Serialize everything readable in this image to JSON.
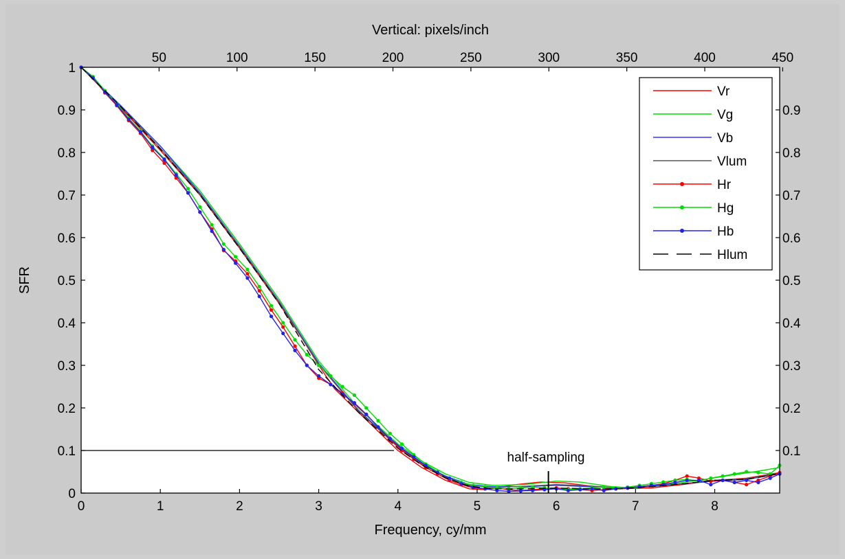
{
  "chart_data": {
    "type": "line",
    "xlabel": "Frequency, cy/mm",
    "ylabel": "SFR",
    "top_xlabel": "Vertical: pixels/inch",
    "xlim": [
      0,
      8.82
    ],
    "ylim": [
      0,
      1
    ],
    "x_ticks": [
      "0",
      "1",
      "2",
      "3",
      "4",
      "5",
      "6",
      "7",
      "8"
    ],
    "y_ticks": [
      "0",
      "0.1",
      "0.2",
      "0.3",
      "0.4",
      "0.5",
      "0.6",
      "0.7",
      "0.8",
      "0.9",
      "1"
    ],
    "right_y_ticks": [
      "0.1",
      "0.2",
      "0.3",
      "0.4",
      "0.5",
      "0.6",
      "0.7",
      "0.8",
      "0.9"
    ],
    "top_x_ticks": [
      "50",
      "100",
      "150",
      "200",
      "250",
      "300",
      "350",
      "400",
      "450"
    ],
    "top_x_scale_ppi_per_cy_mm": 50.8,
    "grid": false,
    "legend_position": "top-right",
    "annotations": [
      {
        "text": "half-sampling",
        "x": 5.9,
        "y": 0.0
      },
      {
        "text": "",
        "type": "hline",
        "x": [
          0,
          3.95
        ],
        "y": 0.1
      }
    ],
    "series": [
      {
        "name": "Vr",
        "color": "#ff0000",
        "marker": "none",
        "style": "solid",
        "x": [
          0,
          0.5,
          1,
          1.5,
          2,
          2.5,
          2.8,
          3,
          3.2,
          3.5,
          3.75,
          4,
          4.3,
          4.6,
          4.9,
          5.1,
          5.5,
          5.8,
          6.1,
          6.5,
          6.8,
          7.2,
          7.6,
          8,
          8.4,
          8.82
        ],
        "values": [
          1.0,
          0.905,
          0.805,
          0.7,
          0.575,
          0.445,
          0.36,
          0.3,
          0.245,
          0.19,
          0.145,
          0.1,
          0.06,
          0.03,
          0.01,
          0.008,
          0.02,
          0.026,
          0.024,
          0.015,
          0.01,
          0.012,
          0.02,
          0.03,
          0.035,
          0.048
        ]
      },
      {
        "name": "Vg",
        "color": "#00dd00",
        "marker": "none",
        "style": "solid",
        "x": [
          0,
          0.5,
          1,
          1.5,
          2,
          2.5,
          3,
          3.5,
          4,
          4.3,
          4.6,
          4.9,
          5.2,
          5.6,
          6,
          6.3,
          6.7,
          7,
          7.4,
          7.8,
          8.2,
          8.5,
          8.82
        ],
        "values": [
          1.0,
          0.91,
          0.815,
          0.71,
          0.585,
          0.455,
          0.31,
          0.2,
          0.115,
          0.075,
          0.045,
          0.025,
          0.018,
          0.02,
          0.028,
          0.026,
          0.015,
          0.012,
          0.02,
          0.03,
          0.042,
          0.05,
          0.06
        ]
      },
      {
        "name": "Vb",
        "color": "#3333ff",
        "marker": "none",
        "style": "solid",
        "x": [
          0,
          0.5,
          1,
          1.5,
          2,
          2.5,
          3,
          3.5,
          4,
          4.3,
          4.6,
          4.9,
          5.2,
          5.6,
          6,
          6.4,
          6.8,
          7.2,
          7.6,
          8,
          8.4,
          8.82
        ],
        "values": [
          1.0,
          0.91,
          0.815,
          0.705,
          0.58,
          0.45,
          0.305,
          0.195,
          0.11,
          0.07,
          0.04,
          0.02,
          0.015,
          0.015,
          0.018,
          0.015,
          0.012,
          0.015,
          0.022,
          0.028,
          0.032,
          0.045
        ]
      },
      {
        "name": "Vlum",
        "color": "#555555",
        "marker": "none",
        "style": "solid",
        "x": [
          0,
          0.5,
          1,
          1.5,
          2,
          2.5,
          3,
          3.5,
          4,
          4.3,
          4.6,
          4.9,
          5.2,
          5.6,
          6,
          6.4,
          6.8,
          7.2,
          7.6,
          8,
          8.4,
          8.82
        ],
        "values": [
          1.0,
          0.908,
          0.81,
          0.702,
          0.578,
          0.448,
          0.302,
          0.193,
          0.108,
          0.068,
          0.038,
          0.018,
          0.013,
          0.016,
          0.02,
          0.017,
          0.012,
          0.015,
          0.022,
          0.03,
          0.034,
          0.046
        ]
      },
      {
        "name": "Hr",
        "color": "#ff0000",
        "marker": "dot",
        "style": "solid",
        "x": [
          0,
          0.15,
          0.3,
          0.45,
          0.6,
          0.75,
          0.9,
          1.05,
          1.2,
          1.35,
          1.5,
          1.65,
          1.8,
          1.95,
          2.1,
          2.25,
          2.4,
          2.55,
          2.7,
          2.85,
          3,
          3.15,
          3.3,
          3.45,
          3.6,
          3.75,
          3.9,
          4.05,
          4.2,
          4.35,
          4.5,
          4.65,
          4.8,
          4.95,
          5.1,
          5.25,
          5.4,
          5.55,
          5.7,
          5.85,
          6,
          6.15,
          6.3,
          6.45,
          6.6,
          6.75,
          6.9,
          7.05,
          7.2,
          7.35,
          7.5,
          7.65,
          7.8,
          7.95,
          8.1,
          8.25,
          8.4,
          8.55,
          8.7,
          8.82
        ],
        "values": [
          1.0,
          0.975,
          0.94,
          0.91,
          0.875,
          0.845,
          0.805,
          0.775,
          0.74,
          0.705,
          0.66,
          0.62,
          0.57,
          0.545,
          0.515,
          0.475,
          0.43,
          0.39,
          0.345,
          0.3,
          0.27,
          0.255,
          0.235,
          0.21,
          0.185,
          0.155,
          0.125,
          0.1,
          0.08,
          0.06,
          0.045,
          0.03,
          0.02,
          0.012,
          0.01,
          0.012,
          0.008,
          0.006,
          0.008,
          0.01,
          0.012,
          0.01,
          0.008,
          0.006,
          0.008,
          0.01,
          0.012,
          0.015,
          0.018,
          0.022,
          0.03,
          0.04,
          0.035,
          0.028,
          0.03,
          0.025,
          0.02,
          0.03,
          0.04,
          0.048
        ]
      },
      {
        "name": "Hg",
        "color": "#00dd00",
        "marker": "dot",
        "style": "solid",
        "x": [
          0,
          0.15,
          0.3,
          0.45,
          0.6,
          0.75,
          0.9,
          1.05,
          1.2,
          1.35,
          1.5,
          1.65,
          1.8,
          1.95,
          2.1,
          2.25,
          2.4,
          2.55,
          2.7,
          2.85,
          3,
          3.15,
          3.3,
          3.45,
          3.6,
          3.75,
          3.9,
          4.05,
          4.2,
          4.35,
          4.5,
          4.65,
          4.8,
          4.95,
          5.1,
          5.25,
          5.4,
          5.55,
          5.7,
          5.85,
          6,
          6.15,
          6.3,
          6.45,
          6.6,
          6.75,
          6.9,
          7.05,
          7.2,
          7.35,
          7.5,
          7.65,
          7.8,
          7.95,
          8.1,
          8.25,
          8.4,
          8.55,
          8.7,
          8.82
        ],
        "values": [
          1.0,
          0.978,
          0.945,
          0.915,
          0.88,
          0.85,
          0.815,
          0.785,
          0.75,
          0.715,
          0.672,
          0.63,
          0.585,
          0.555,
          0.525,
          0.485,
          0.44,
          0.4,
          0.36,
          0.325,
          0.3,
          0.275,
          0.25,
          0.23,
          0.2,
          0.17,
          0.14,
          0.115,
          0.09,
          0.068,
          0.05,
          0.035,
          0.025,
          0.018,
          0.015,
          0.012,
          0.01,
          0.012,
          0.014,
          0.012,
          0.01,
          0.008,
          0.01,
          0.012,
          0.014,
          0.012,
          0.014,
          0.018,
          0.022,
          0.026,
          0.03,
          0.032,
          0.028,
          0.035,
          0.04,
          0.045,
          0.05,
          0.048,
          0.045,
          0.065
        ]
      },
      {
        "name": "Hb",
        "color": "#2222ee",
        "marker": "dot",
        "style": "solid",
        "x": [
          0,
          0.15,
          0.3,
          0.45,
          0.6,
          0.75,
          0.9,
          1.05,
          1.2,
          1.35,
          1.5,
          1.65,
          1.8,
          1.95,
          2.1,
          2.25,
          2.4,
          2.55,
          2.7,
          2.85,
          3,
          3.15,
          3.3,
          3.45,
          3.6,
          3.75,
          3.9,
          4.05,
          4.2,
          4.35,
          4.5,
          4.65,
          4.8,
          4.95,
          5.1,
          5.25,
          5.4,
          5.55,
          5.7,
          5.85,
          6,
          6.15,
          6.3,
          6.45,
          6.6,
          6.75,
          6.9,
          7.05,
          7.2,
          7.35,
          7.5,
          7.65,
          7.8,
          7.95,
          8.1,
          8.25,
          8.4,
          8.55,
          8.7,
          8.82
        ],
        "values": [
          1.0,
          0.975,
          0.942,
          0.912,
          0.878,
          0.848,
          0.812,
          0.783,
          0.747,
          0.705,
          0.66,
          0.615,
          0.572,
          0.54,
          0.505,
          0.462,
          0.415,
          0.375,
          0.335,
          0.3,
          0.275,
          0.255,
          0.232,
          0.212,
          0.185,
          0.155,
          0.128,
          0.105,
          0.085,
          0.065,
          0.048,
          0.035,
          0.022,
          0.014,
          0.01,
          0.006,
          0.004,
          0.005,
          0.006,
          0.008,
          0.01,
          0.006,
          0.008,
          0.01,
          0.006,
          0.01,
          0.012,
          0.015,
          0.018,
          0.02,
          0.025,
          0.03,
          0.03,
          0.02,
          0.03,
          0.025,
          0.03,
          0.025,
          0.035,
          0.045
        ]
      },
      {
        "name": "Hlum",
        "color": "#000000",
        "marker": "none",
        "style": "dashed",
        "x": [
          0,
          0.5,
          1,
          1.5,
          2,
          2.5,
          3,
          3.5,
          4,
          4.3,
          4.6,
          4.9,
          5.2,
          5.6,
          6,
          6.4,
          6.8,
          7.2,
          7.6,
          8,
          8.4,
          8.82
        ],
        "values": [
          1.0,
          0.908,
          0.808,
          0.7,
          0.575,
          0.445,
          0.29,
          0.19,
          0.105,
          0.066,
          0.036,
          0.016,
          0.01,
          0.01,
          0.012,
          0.01,
          0.01,
          0.015,
          0.022,
          0.03,
          0.032,
          0.046
        ]
      }
    ]
  }
}
